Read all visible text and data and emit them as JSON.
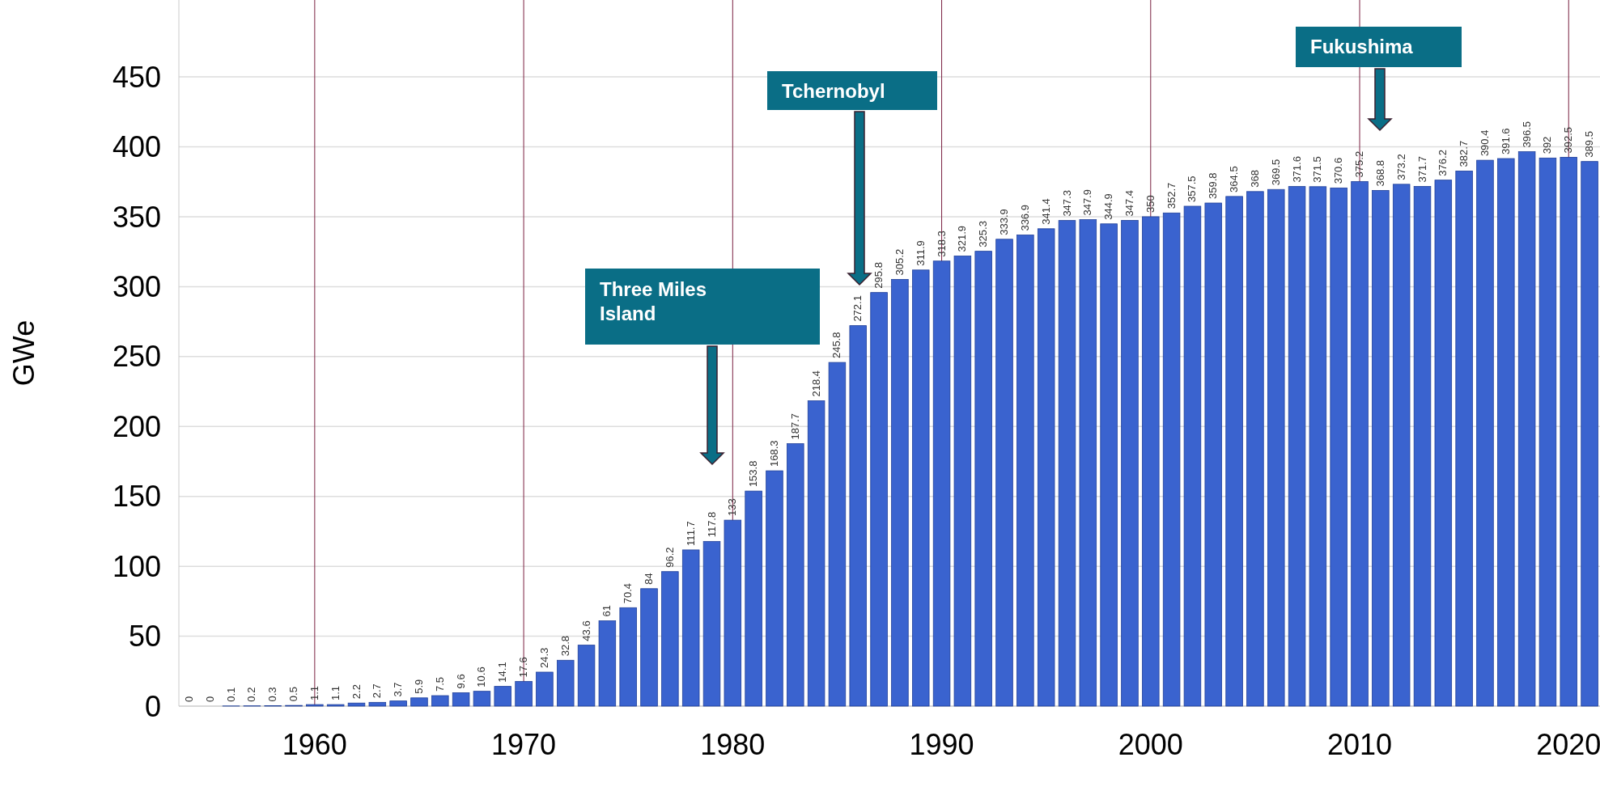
{
  "chart_data": {
    "type": "bar",
    "ylabel": "GWe",
    "x": [
      1954,
      1955,
      1956,
      1957,
      1958,
      1959,
      1960,
      1961,
      1962,
      1963,
      1964,
      1965,
      1966,
      1967,
      1968,
      1969,
      1970,
      1971,
      1972,
      1973,
      1974,
      1975,
      1976,
      1977,
      1978,
      1979,
      1980,
      1981,
      1982,
      1983,
      1984,
      1985,
      1986,
      1987,
      1988,
      1989,
      1990,
      1991,
      1992,
      1993,
      1994,
      1995,
      1996,
      1997,
      1998,
      1999,
      2000,
      2001,
      2002,
      2003,
      2004,
      2005,
      2006,
      2007,
      2008,
      2009,
      2010,
      2011,
      2012,
      2013,
      2014,
      2015,
      2016,
      2017,
      2018,
      2019,
      2020,
      2021
    ],
    "values": [
      0,
      0,
      0.1,
      0.2,
      0.3,
      0.5,
      1.1,
      1.1,
      2.2,
      2.7,
      3.7,
      5.9,
      7.5,
      9.6,
      10.6,
      14.1,
      17.6,
      24.3,
      32.8,
      43.6,
      61,
      70.4,
      84,
      96.2,
      111.7,
      117.8,
      133,
      153.8,
      168.3,
      187.7,
      218.4,
      245.8,
      272.1,
      295.8,
      305.2,
      311.9,
      318.3,
      321.9,
      325.3,
      333.9,
      336.9,
      341.4,
      347.3,
      347.9,
      344.9,
      347.4,
      350,
      352.7,
      357.5,
      359.8,
      364.5,
      368,
      369.5,
      371.6,
      371.5,
      370.6,
      375.2,
      368.8,
      373.2,
      371.7,
      376.2,
      382.7,
      390.4,
      391.6,
      396.5,
      392,
      392.5,
      389.5
    ],
    "color": "#3a63cf",
    "data_labels": true,
    "xlim": [
      1953.5,
      2021.5
    ],
    "xticks": [
      1960,
      1970,
      1980,
      1990,
      2000,
      2010,
      2020
    ],
    "ylim": [
      0,
      505
    ],
    "yticks": [
      0,
      50,
      100,
      150,
      200,
      250,
      300,
      350,
      400,
      450
    ],
    "grid": true,
    "annotations": [
      "Three Miles Island",
      "Tchernobyl",
      "Fukushima"
    ]
  }
}
